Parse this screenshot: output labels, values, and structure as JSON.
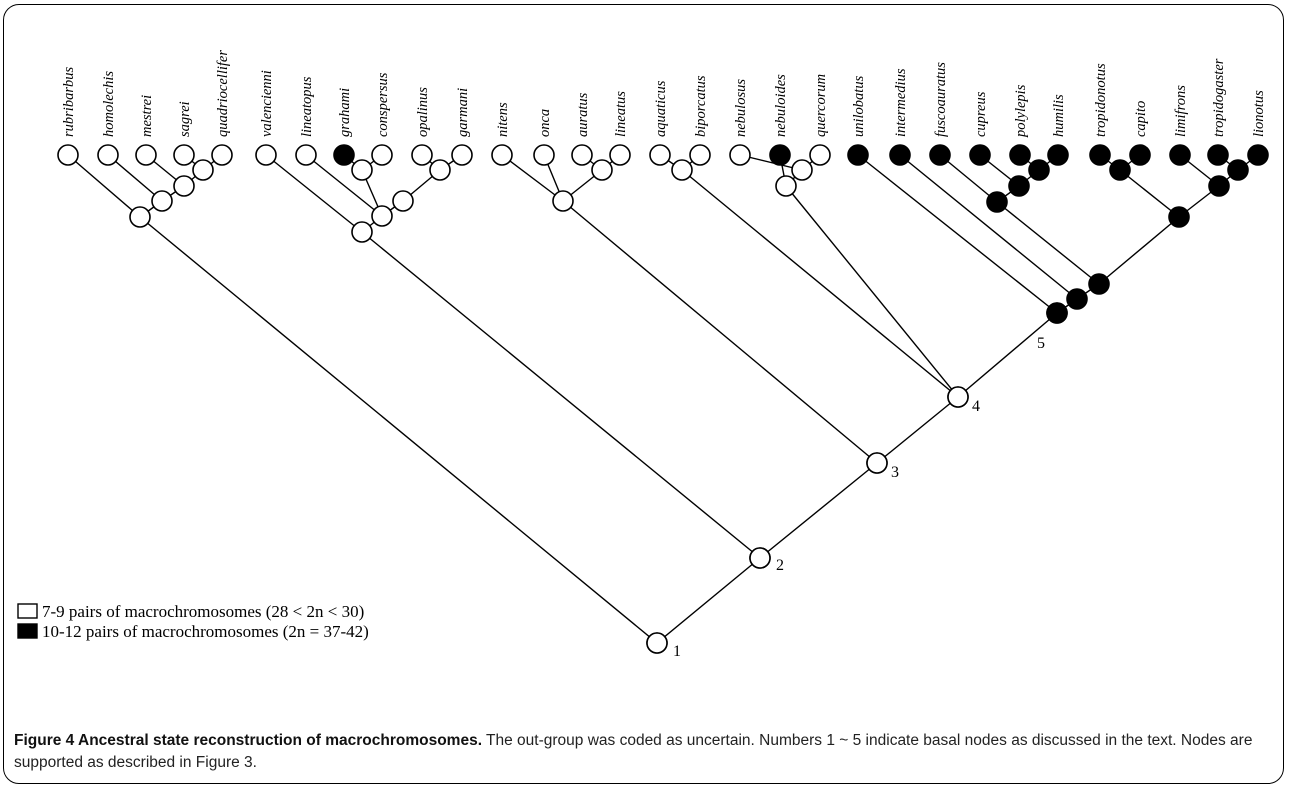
{
  "taxa": [
    {
      "name": "rubribarbus",
      "state": "open"
    },
    {
      "name": "homolechis",
      "state": "open"
    },
    {
      "name": "mestrei",
      "state": "open"
    },
    {
      "name": "sagrei",
      "state": "open"
    },
    {
      "name": "quadriocellifer",
      "state": "open"
    },
    {
      "name": "valencienni",
      "state": "open"
    },
    {
      "name": "lineatopus",
      "state": "open"
    },
    {
      "name": "grahami",
      "state": "filled"
    },
    {
      "name": "conspersus",
      "state": "open"
    },
    {
      "name": "opalinus",
      "state": "open"
    },
    {
      "name": "garmani",
      "state": "open"
    },
    {
      "name": "nitens",
      "state": "open"
    },
    {
      "name": "onca",
      "state": "open"
    },
    {
      "name": "auratus",
      "state": "open"
    },
    {
      "name": "lineatus",
      "state": "open"
    },
    {
      "name": "aquaticus",
      "state": "open"
    },
    {
      "name": "biporcatus",
      "state": "open"
    },
    {
      "name": "nebulosus",
      "state": "open"
    },
    {
      "name": "nebuloides",
      "state": "filled"
    },
    {
      "name": "quercorum",
      "state": "open"
    },
    {
      "name": "unilobatus",
      "state": "filled"
    },
    {
      "name": "intermedius",
      "state": "filled"
    },
    {
      "name": "fuscoauratus",
      "state": "filled"
    },
    {
      "name": "cupreus",
      "state": "filled"
    },
    {
      "name": "polylepis",
      "state": "filled"
    },
    {
      "name": "humilis",
      "state": "filled"
    },
    {
      "name": "tropidonotus",
      "state": "filled"
    },
    {
      "name": "capito",
      "state": "filled"
    },
    {
      "name": "limifrons",
      "state": "filled"
    },
    {
      "name": "tropidogaster",
      "state": "filled"
    },
    {
      "name": "lionotus",
      "state": "filled"
    }
  ],
  "basal_nodes": [
    {
      "label": "1",
      "state": "open"
    },
    {
      "label": "2",
      "state": "open"
    },
    {
      "label": "3",
      "state": "open"
    },
    {
      "label": "4",
      "state": "open"
    },
    {
      "label": "5",
      "state": "filled"
    }
  ],
  "legend": [
    {
      "state": "open",
      "text": "7-9 pairs of macrochromosomes (28 < 2n < 30)"
    },
    {
      "state": "filled",
      "text": "10-12 pairs of macrochromosomes (2n = 37-42)"
    }
  ],
  "caption": {
    "title": "Figure 4 Ancestral state reconstruction of macrochromosomes.",
    "body": "The out-group was coded as uncertain. Numbers 1 ~ 5 indicate basal nodes as discussed in the text. Nodes are supported as described in Figure 3."
  }
}
